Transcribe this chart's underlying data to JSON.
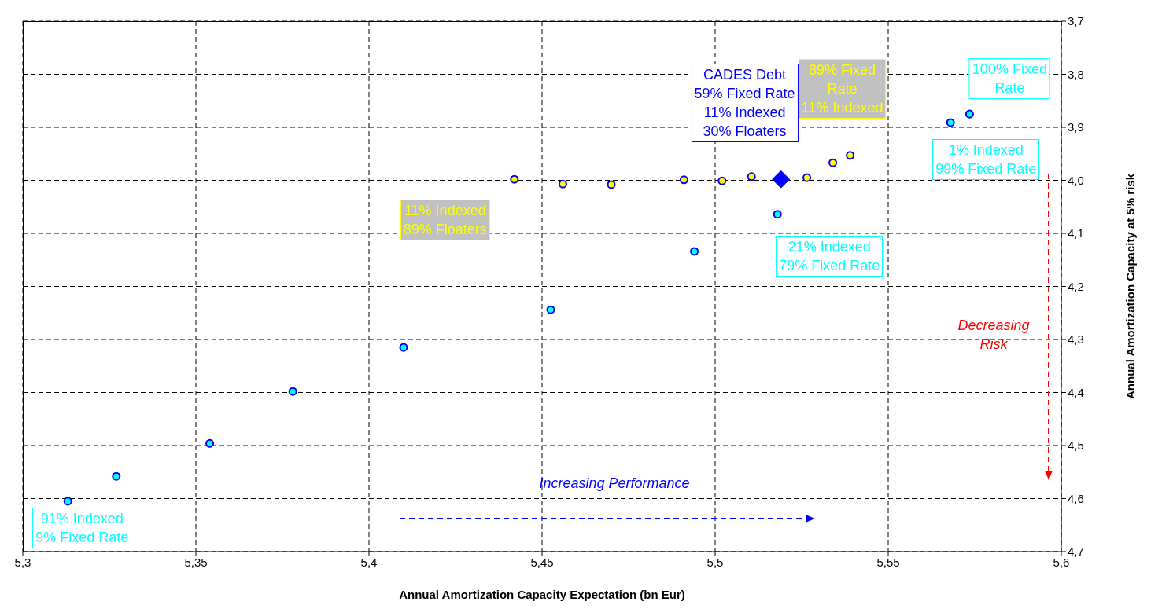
{
  "chart_data": {
    "type": "scatter",
    "xlabel": "Annual Amortization Capacity Expectation (bn Eur)",
    "ylabel": "Annual Amortization Capacity  at 5% risk",
    "xlim": [
      5.3,
      5.6
    ],
    "xticks": [
      {
        "value": 5.3,
        "label": "5,3"
      },
      {
        "value": 5.35,
        "label": "5,35"
      },
      {
        "value": 5.4,
        "label": "5,4"
      },
      {
        "value": 5.45,
        "label": "5,45"
      },
      {
        "value": 5.5,
        "label": "5,5"
      },
      {
        "value": 5.55,
        "label": "5,55"
      },
      {
        "value": 5.6,
        "label": "5,6"
      }
    ],
    "ylim": [
      4.7,
      3.7
    ],
    "yticks": [
      {
        "value": 3.7,
        "label": "3,7"
      },
      {
        "value": 3.8,
        "label": "3,8"
      },
      {
        "value": 3.9,
        "label": "3,9"
      },
      {
        "value": 4.0,
        "label": "4,0"
      },
      {
        "value": 4.1,
        "label": "4,1"
      },
      {
        "value": 4.2,
        "label": "4,2"
      },
      {
        "value": 4.3,
        "label": "4,3"
      },
      {
        "value": 4.4,
        "label": "4,4"
      },
      {
        "value": 4.5,
        "label": "4,5"
      },
      {
        "value": 4.6,
        "label": "4,6"
      },
      {
        "value": 4.7,
        "label": "4,7"
      }
    ],
    "grid": true,
    "legend": false,
    "series": [
      {
        "color": "#00ffff",
        "marker": "circle",
        "x": [
          5.313,
          5.327,
          5.354,
          5.378,
          5.41,
          5.4525,
          5.494,
          5.518,
          5.568,
          5.5735
        ],
        "values": [
          4.605,
          4.558,
          4.496,
          4.398,
          4.315,
          4.244,
          4.134,
          4.064,
          3.891,
          3.875
        ]
      },
      {
        "color": "#ffff00",
        "marker": "circle",
        "x": [
          5.442,
          5.456,
          5.47,
          5.491,
          5.502,
          5.5105,
          5.5265,
          5.534,
          5.539
        ],
        "values": [
          3.998,
          4.007,
          4.008,
          3.999,
          4.001,
          3.993,
          3.995,
          3.967,
          3.953
        ]
      },
      {
        "color": "#0000ff",
        "marker": "diamond",
        "x": [
          5.519
        ],
        "values": [
          3.998
        ]
      }
    ],
    "annotations": [
      {
        "text": "CADES Debt\n59% Fixed Rate\n11% Indexed\n30% Floaters",
        "x": 5.519,
        "y": 3.998
      },
      {
        "text": "89% Fixed\nRate\n11% Indexed",
        "x": 5.539,
        "y": 3.953
      },
      {
        "text": "100% Fixed\nRate",
        "x": 5.5735,
        "y": 3.875
      },
      {
        "text": "1% Indexed\n99% Fixed Rate",
        "x": 5.568,
        "y": 3.891
      },
      {
        "text": "11% Indexed\n89% Floaters",
        "x": 5.442,
        "y": 3.998
      },
      {
        "text": "21% Indexed\n79% Fixed Rate",
        "x": 5.518,
        "y": 4.064
      },
      {
        "text": "91% Indexed\n9% Fixed Rate",
        "x": 5.313,
        "y": 4.605
      },
      "Increasing Performance",
      "Decreasing\nRisk"
    ]
  }
}
